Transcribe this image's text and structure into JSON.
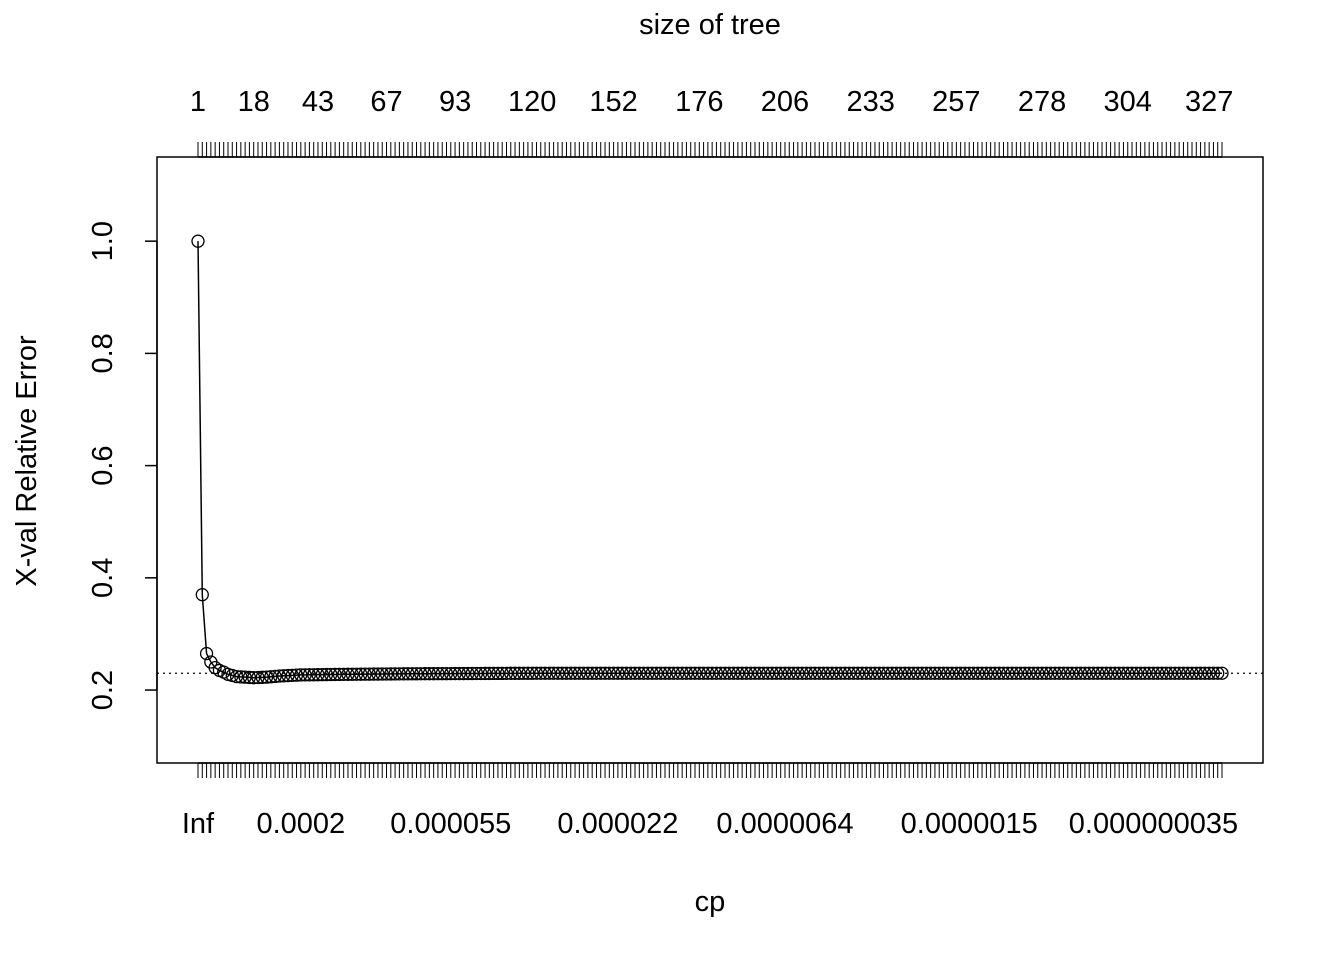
{
  "chart_data": {
    "type": "line",
    "title": "",
    "top_axis_title": "size of tree",
    "xlabel": "cp",
    "ylabel": "X-val Relative Error",
    "ylim": [
      0.07,
      1.15
    ],
    "y_ticks": [
      0.2,
      0.4,
      0.6,
      0.8,
      1.0
    ],
    "y_tick_labels": [
      "0.2",
      "0.4",
      "0.6",
      "0.8",
      "1.0"
    ],
    "n_cp": 240,
    "top_tick_labels": [
      "1",
      "18",
      "43",
      "67",
      "93",
      "120",
      "152",
      "176",
      "206",
      "233",
      "257",
      "278",
      "304",
      "327"
    ],
    "top_tick_positions": [
      1,
      14,
      29,
      45,
      61,
      79,
      98,
      118,
      138,
      158,
      178,
      198,
      218,
      237
    ],
    "bottom_tick_labels": [
      "Inf",
      "0.0002",
      "0.000055",
      "0.000022",
      "0.0000064",
      "0.0000015",
      "0.000000035"
    ],
    "bottom_tick_positions": [
      1,
      25,
      60,
      99,
      138,
      181,
      224
    ],
    "reference_line": 0.23,
    "grid": false,
    "legend": "none",
    "series": [
      {
        "points": [
          {
            "x": 1,
            "y": 1.0
          },
          {
            "x": 2,
            "y": 0.37
          },
          {
            "x": 3,
            "y": 0.265
          },
          {
            "x": 4,
            "y": 0.25
          },
          {
            "x": 5,
            "y": 0.24
          },
          {
            "x": 6,
            "y": 0.235
          },
          {
            "x": 7,
            "y": 0.232
          },
          {
            "x": 8,
            "y": 0.228
          },
          {
            "x": 9,
            "y": 0.226
          },
          {
            "x": 10,
            "y": 0.224
          },
          {
            "x": 12,
            "y": 0.223
          },
          {
            "x": 14,
            "y": 0.222
          },
          {
            "x": 17,
            "y": 0.223
          },
          {
            "x": 20,
            "y": 0.225
          },
          {
            "x": 25,
            "y": 0.227
          },
          {
            "x": 35,
            "y": 0.228
          },
          {
            "x": 50,
            "y": 0.229
          },
          {
            "x": 80,
            "y": 0.23
          },
          {
            "x": 240,
            "y": 0.23
          }
        ]
      }
    ]
  }
}
